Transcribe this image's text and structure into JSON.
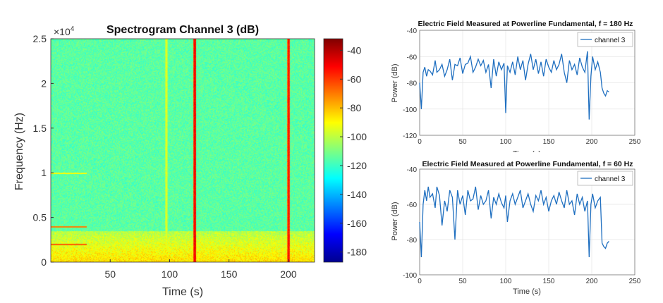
{
  "spectrogram": {
    "title": "Spectrogram Channel 3 (dB)",
    "xlabel": "Time (s)",
    "ylabel": "Frequency (Hz)",
    "exponent_base": "×10",
    "exponent_power": "4",
    "colormap": "jet",
    "colors": {
      "low": "#00008f",
      "mid": "#40e0c0",
      "high": "#800000"
    }
  },
  "chart_data": [
    {
      "type": "heatmap",
      "title": "Spectrogram Channel 3 (dB)",
      "xlabel": "Time (s)",
      "ylabel": "Frequency (Hz)",
      "xlim": [
        0,
        222
      ],
      "ylim": [
        0,
        25000
      ],
      "xticks": [
        50,
        100,
        150,
        200
      ],
      "yticks": [
        0,
        5000,
        10000,
        15000,
        20000,
        25000
      ],
      "ytick_labels": [
        "0",
        "0.5",
        "1",
        "1.5",
        "2",
        "2.5"
      ],
      "colorbar": {
        "clim": [
          -187,
          -32
        ],
        "ticks": [
          -40,
          -60,
          -80,
          -100,
          -120,
          -140,
          -160,
          -180
        ]
      },
      "background_level_db": -115,
      "low_frequency_band": {
        "freq_range": [
          0,
          3500
        ],
        "level_db": -85
      },
      "vertical_lines": [
        {
          "time": 97,
          "level_db": -90
        },
        {
          "time": 121,
          "level_db": -45
        },
        {
          "time": 200,
          "level_db": -50
        }
      ],
      "horizontal_lines_before_30s": [
        {
          "freq": 2000,
          "level_db": -65
        },
        {
          "freq": 4000,
          "level_db": -70
        },
        {
          "freq": 10000,
          "level_db": -90
        }
      ]
    },
    {
      "type": "line",
      "title": "Electric Field Measured at Powerline Fundamental, f = 180 Hz",
      "xlabel": "Time (s)",
      "ylabel": "Power (dB)",
      "xlim": [
        0,
        250
      ],
      "ylim": [
        -120,
        -40
      ],
      "xticks": [
        0,
        50,
        100,
        150,
        200,
        250
      ],
      "yticks": [
        -40,
        -60,
        -80,
        -100,
        -120
      ],
      "grid": true,
      "legend": "top-right",
      "series": [
        {
          "name": "channel 3",
          "x": [
            0,
            2,
            4,
            6,
            8,
            10,
            12,
            15,
            18,
            20,
            23,
            26,
            29,
            32,
            35,
            38,
            41,
            44,
            47,
            50,
            53,
            56,
            59,
            62,
            65,
            68,
            71,
            74,
            77,
            80,
            83,
            86,
            89,
            92,
            95,
            98,
            100,
            102,
            105,
            108,
            111,
            114,
            117,
            120,
            123,
            126,
            129,
            132,
            135,
            138,
            141,
            144,
            147,
            150,
            153,
            156,
            159,
            162,
            165,
            168,
            171,
            174,
            177,
            180,
            183,
            186,
            189,
            192,
            195,
            197,
            199,
            201,
            204,
            207,
            210,
            212,
            214,
            216,
            218,
            220
          ],
          "y": [
            -80,
            -100,
            -72,
            -68,
            -75,
            -70,
            -71,
            -74,
            -63,
            -72,
            -70,
            -66,
            -75,
            -70,
            -62,
            -78,
            -66,
            -67,
            -61,
            -73,
            -66,
            -65,
            -60,
            -72,
            -68,
            -62,
            -67,
            -63,
            -72,
            -66,
            -84,
            -62,
            -75,
            -64,
            -70,
            -65,
            -103,
            -67,
            -72,
            -64,
            -74,
            -60,
            -70,
            -63,
            -78,
            -66,
            -58,
            -70,
            -62,
            -73,
            -64,
            -75,
            -62,
            -68,
            -72,
            -63,
            -70,
            -66,
            -58,
            -72,
            -80,
            -63,
            -70,
            -66,
            -74,
            -61,
            -68,
            -72,
            -56,
            -108,
            -75,
            -60,
            -70,
            -64,
            -72,
            -84,
            -88,
            -90,
            -86,
            -87
          ]
        }
      ]
    },
    {
      "type": "line",
      "title": "Electric Field Measured at Powerline Fundamental, f = 60 Hz",
      "xlabel": "Time (s)",
      "ylabel": "Power (dB)",
      "xlim": [
        0,
        250
      ],
      "ylim": [
        -100,
        -40
      ],
      "xticks": [
        0,
        50,
        100,
        150,
        200,
        250
      ],
      "yticks": [
        -40,
        -60,
        -80,
        -100
      ],
      "grid": true,
      "legend": "top-right",
      "series": [
        {
          "name": "channel 3",
          "x": [
            0,
            2,
            4,
            6,
            8,
            10,
            12,
            15,
            18,
            20,
            23,
            26,
            29,
            32,
            35,
            38,
            41,
            44,
            47,
            50,
            53,
            56,
            59,
            62,
            65,
            68,
            71,
            74,
            77,
            80,
            83,
            86,
            89,
            92,
            95,
            98,
            100,
            102,
            105,
            108,
            111,
            114,
            117,
            120,
            123,
            126,
            129,
            132,
            135,
            138,
            141,
            144,
            147,
            150,
            153,
            156,
            159,
            162,
            165,
            168,
            171,
            174,
            177,
            180,
            183,
            186,
            189,
            192,
            195,
            197,
            199,
            201,
            204,
            207,
            210,
            212,
            214,
            216,
            218,
            220
          ],
          "y": [
            -70,
            -90,
            -60,
            -52,
            -58,
            -50,
            -56,
            -54,
            -62,
            -50,
            -55,
            -72,
            -58,
            -64,
            -52,
            -56,
            -80,
            -52,
            -60,
            -55,
            -66,
            -52,
            -58,
            -57,
            -50,
            -63,
            -55,
            -60,
            -58,
            -52,
            -68,
            -56,
            -60,
            -54,
            -59,
            -62,
            -55,
            -70,
            -58,
            -54,
            -60,
            -56,
            -52,
            -62,
            -58,
            -54,
            -60,
            -64,
            -55,
            -58,
            -52,
            -60,
            -56,
            -64,
            -58,
            -55,
            -60,
            -53,
            -58,
            -62,
            -52,
            -60,
            -58,
            -66,
            -54,
            -60,
            -56,
            -64,
            -58,
            -90,
            -60,
            -54,
            -62,
            -58,
            -56,
            -82,
            -84,
            -85,
            -82,
            -81
          ]
        }
      ]
    }
  ]
}
